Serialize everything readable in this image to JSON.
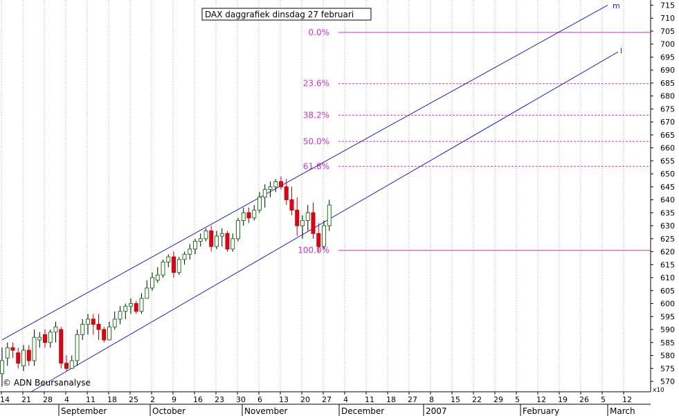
{
  "chart_data": {
    "type": "candlestick",
    "title": "DAX daggrafiek dinsdag 27 februari",
    "copyright": "© ADN Beursanalyse",
    "y_multiplier_label": "x10",
    "ylim": [
      566,
      717
    ],
    "y_ticks": [
      570,
      575,
      580,
      585,
      590,
      595,
      600,
      605,
      610,
      615,
      620,
      625,
      630,
      635,
      640,
      645,
      650,
      655,
      660,
      665,
      670,
      675,
      680,
      685,
      690,
      695,
      700,
      705,
      710,
      715
    ],
    "x_day_labels": [
      "14",
      "21",
      "28",
      "4",
      "11",
      "18",
      "25",
      "2",
      "9",
      "16",
      "23",
      "30",
      "6",
      "13",
      "20",
      "27",
      "4",
      "11",
      "18",
      "27",
      "8",
      "15",
      "22",
      "29",
      "5",
      "12",
      "19",
      "26",
      "5",
      "12"
    ],
    "x_month_labels": [
      "September",
      "October",
      "November",
      "December",
      "2007",
      "February",
      "March"
    ],
    "fibonacci": {
      "high": 704,
      "low": 620.5,
      "levels": [
        {
          "label": "0.0%",
          "value": 704.5
        },
        {
          "label": "23.6%",
          "value": 684.8
        },
        {
          "label": "38.2%",
          "value": 672.6
        },
        {
          "label": "50.0%",
          "value": 662.5
        },
        {
          "label": "61.8%",
          "value": 652.9
        },
        {
          "label": "100.0%",
          "value": 620.5
        }
      ]
    },
    "channel_labels": {
      "upper": "m",
      "lower": "l"
    },
    "upper_channel": {
      "from": [
        0,
        586
      ],
      "to": [
        61,
        715
      ]
    },
    "lower_channel": {
      "from": [
        5,
        566
      ],
      "to": [
        62,
        697
      ]
    },
    "ohlc": [
      [
        0,
        573,
        583,
        568,
        578
      ],
      [
        1,
        579,
        585,
        576,
        583
      ],
      [
        2,
        583,
        585,
        579,
        582
      ],
      [
        3,
        581,
        583,
        575,
        577
      ],
      [
        4,
        576,
        584,
        574,
        582
      ],
      [
        5,
        582,
        584,
        576,
        578
      ],
      [
        6,
        578,
        590,
        576,
        587
      ],
      [
        7,
        586,
        589,
        583,
        587
      ],
      [
        8,
        588,
        590,
        583,
        585
      ],
      [
        9,
        585,
        590,
        583,
        589
      ],
      [
        10,
        589,
        593,
        585,
        591
      ],
      [
        11,
        590,
        591,
        575,
        577
      ],
      [
        12,
        577,
        580,
        574,
        575
      ],
      [
        13,
        575,
        580,
        575,
        578
      ],
      [
        14,
        578,
        590,
        576,
        588
      ],
      [
        15,
        588,
        594,
        586,
        592
      ],
      [
        16,
        592,
        596,
        588,
        594
      ],
      [
        17,
        594,
        596,
        588,
        592
      ],
      [
        18,
        592,
        596,
        586,
        590
      ],
      [
        19,
        590,
        591,
        585,
        586
      ],
      [
        20,
        586,
        593,
        586,
        591
      ],
      [
        21,
        591,
        597,
        590,
        594
      ],
      [
        22,
        594,
        599,
        592,
        597
      ],
      [
        23,
        597,
        600,
        594,
        599
      ],
      [
        24,
        599,
        602,
        596,
        600
      ],
      [
        25,
        600,
        601,
        596,
        597
      ],
      [
        26,
        597,
        604,
        596,
        602
      ],
      [
        27,
        602,
        609,
        602,
        606
      ],
      [
        28,
        606,
        612,
        605,
        610
      ],
      [
        29,
        609,
        614,
        608,
        611
      ],
      [
        30,
        611,
        617,
        610,
        616
      ],
      [
        31,
        616,
        619,
        614,
        618
      ],
      [
        32,
        618,
        620,
        610,
        612
      ],
      [
        33,
        612,
        618,
        611,
        617
      ],
      [
        34,
        617,
        620,
        615,
        619
      ],
      [
        35,
        619,
        623,
        617,
        621
      ],
      [
        36,
        621,
        625,
        619,
        624
      ],
      [
        37,
        624,
        627,
        622,
        625
      ],
      [
        38,
        625,
        629,
        624,
        628
      ],
      [
        39,
        628,
        630,
        620,
        622
      ],
      [
        40,
        622,
        628,
        621,
        626
      ],
      [
        41,
        626,
        629,
        622,
        627
      ],
      [
        42,
        627,
        628,
        620,
        621
      ],
      [
        43,
        621,
        627,
        620,
        625
      ],
      [
        44,
        625,
        633,
        624,
        632
      ],
      [
        45,
        632,
        637,
        630,
        635
      ],
      [
        46,
        635,
        637,
        631,
        633
      ],
      [
        47,
        633,
        638,
        632,
        636
      ],
      [
        48,
        636,
        643,
        635,
        641
      ],
      [
        49,
        641,
        646,
        637,
        644
      ],
      [
        50,
        644,
        647,
        641,
        645
      ],
      [
        51,
        645,
        648,
        643,
        647
      ],
      [
        52,
        647,
        649,
        644,
        645
      ],
      [
        53,
        645,
        648,
        638,
        640
      ],
      [
        54,
        640,
        645,
        634,
        636
      ],
      [
        55,
        636,
        641,
        626,
        630
      ],
      [
        56,
        630,
        634,
        625,
        632
      ],
      [
        57,
        632,
        638,
        628,
        635
      ],
      [
        58,
        635,
        639,
        625,
        627
      ],
      [
        59,
        627,
        631,
        620,
        622
      ],
      [
        60,
        622,
        632,
        621,
        630
      ],
      [
        61,
        630,
        640,
        628,
        638
      ]
    ]
  }
}
